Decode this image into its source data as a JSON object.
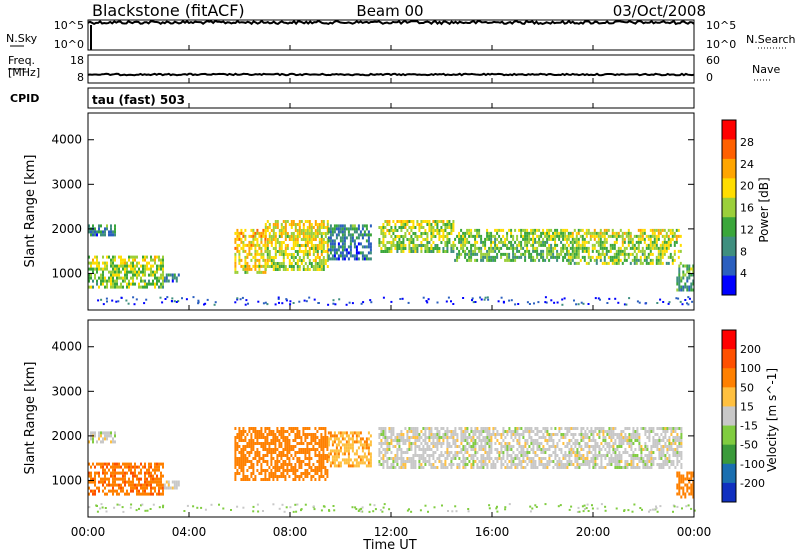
{
  "header": {
    "station": "Blackstone (fitACF)",
    "beam": "Beam 00",
    "date": "03/Oct/2008"
  },
  "chart_data": [
    {
      "type": "line",
      "panel": "sky-search",
      "left_label": "N.Sky",
      "right_label": "N.Search",
      "left_ticks": [
        "10^5",
        "10^0"
      ],
      "right_ticks": [
        "10^5",
        "10^0"
      ],
      "series": [
        {
          "label_side": "left",
          "description_level": 0.92
        },
        {
          "label_side": "right",
          "description_level": 0.0
        }
      ]
    },
    {
      "type": "line",
      "panel": "freq-nave",
      "left_label_lines": [
        "Freq.",
        "[MHz]"
      ],
      "right_label": "Nave",
      "left_ticks": [
        "18",
        "8"
      ],
      "right_ticks": [
        "60",
        "0"
      ],
      "left_range": [
        8,
        18
      ],
      "right_range": [
        0,
        60
      ],
      "series": [
        {
          "axis": "left",
          "value": 10.5
        },
        {
          "axis": "right",
          "value": 0
        }
      ]
    },
    {
      "type": "table",
      "panel": "cpid",
      "label": "CPID",
      "entries": [
        "tau (fast) 503"
      ]
    },
    {
      "type": "heatmap",
      "panel": "power",
      "ylabel": "Slant Range [km]",
      "yticks": [
        "1000",
        "2000",
        "3000",
        "4000"
      ],
      "ylim": [
        180,
        4600
      ],
      "colorbar_label": "Power [dB]",
      "colorbar_ticks": [
        "4",
        "8",
        "12",
        "16",
        "20",
        "24",
        "28"
      ],
      "colorbar_range": [
        0,
        32
      ],
      "colors": [
        "#0000ff",
        "#2b5fbf",
        "#3f8f7f",
        "#3aa63a",
        "#9bcf3a",
        "#ffdd00",
        "#ffa500",
        "#ff6000",
        "#ff0000"
      ],
      "echo_bands": [
        {
          "t": [
            0.0,
            1.1
          ],
          "r": [
            1850,
            2100
          ],
          "level": 10
        },
        {
          "t": [
            0.0,
            3.0
          ],
          "r": [
            700,
            1400
          ],
          "level": 18
        },
        {
          "t": [
            3.0,
            3.6
          ],
          "r": [
            800,
            1000
          ],
          "level": 8
        },
        {
          "t": [
            5.8,
            7.0
          ],
          "r": [
            1000,
            2000
          ],
          "level": 22
        },
        {
          "t": [
            7.0,
            9.5
          ],
          "r": [
            1100,
            2200
          ],
          "level": 20
        },
        {
          "t": [
            9.5,
            11.2
          ],
          "r": [
            1300,
            2100
          ],
          "level": 10
        },
        {
          "t": [
            11.5,
            14.5
          ],
          "r": [
            1500,
            2200
          ],
          "level": 18
        },
        {
          "t": [
            14.5,
            19.0
          ],
          "r": [
            1300,
            2000
          ],
          "level": 16
        },
        {
          "t": [
            19.0,
            23.5
          ],
          "r": [
            1200,
            2000
          ],
          "level": 18
        },
        {
          "t": [
            23.3,
            24.0
          ],
          "r": [
            600,
            1200
          ],
          "level": 14
        }
      ]
    },
    {
      "type": "heatmap",
      "panel": "velocity",
      "ylabel": "Slant Range [km]",
      "yticks": [
        "1000",
        "2000",
        "3000",
        "4000"
      ],
      "ylim": [
        180,
        4600
      ],
      "colorbar_label": "Velocity [m s^-1]",
      "colorbar_ticks": [
        "200",
        "100",
        "50",
        "15",
        "-15",
        "-50",
        "-100",
        "-200"
      ],
      "colors": [
        "#1030c0",
        "#1a6fb0",
        "#3a9a3a",
        "#80cc40",
        "#c8c8c8",
        "#ffc040",
        "#ff8000",
        "#ff5000",
        "#ff0000"
      ],
      "echo_bands": [
        {
          "t": [
            0.0,
            1.1
          ],
          "r": [
            1850,
            2100
          ],
          "velocity": 0
        },
        {
          "t": [
            0.0,
            3.0
          ],
          "r": [
            700,
            1400
          ],
          "velocity": -90
        },
        {
          "t": [
            3.0,
            3.6
          ],
          "r": [
            800,
            1000
          ],
          "velocity": -10
        },
        {
          "t": [
            5.8,
            9.5
          ],
          "r": [
            1000,
            2200
          ],
          "velocity": -80
        },
        {
          "t": [
            9.5,
            11.2
          ],
          "r": [
            1300,
            2100
          ],
          "velocity": -40
        },
        {
          "t": [
            11.5,
            23.5
          ],
          "r": [
            1300,
            2200
          ],
          "velocity": 0
        },
        {
          "t": [
            23.3,
            24.0
          ],
          "r": [
            600,
            1200
          ],
          "velocity": -80
        }
      ]
    }
  ],
  "time_axis": {
    "xlabel": "Time UT",
    "ticks": [
      "00:00",
      "04:00",
      "08:00",
      "12:00",
      "16:00",
      "20:00",
      "00:00"
    ],
    "range_hours": [
      0,
      24
    ]
  }
}
